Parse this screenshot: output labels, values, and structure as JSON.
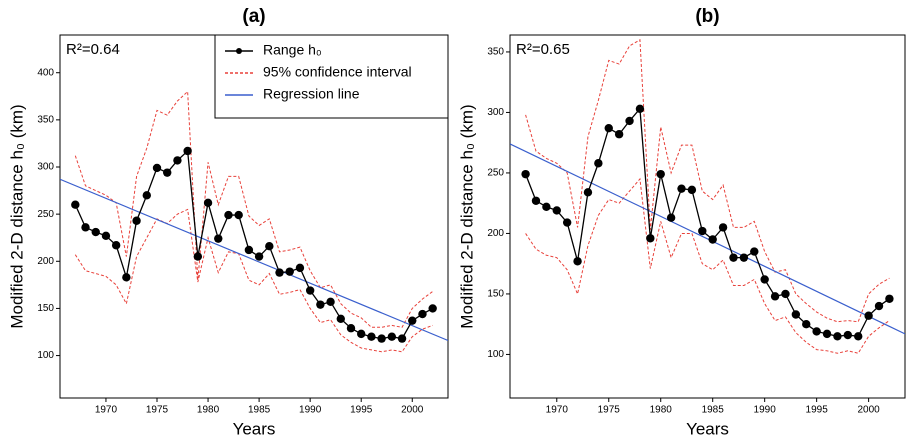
{
  "chart_data": [
    {
      "type": "line",
      "title": "(a)",
      "xlabel": "Years",
      "ylabel": "Modified 2-D distance h₀ (km)",
      "annotation": "R²=0.64",
      "legend": "top-right",
      "x": [
        1967,
        1968,
        1969,
        1970,
        1971,
        1972,
        1973,
        1974,
        1975,
        1976,
        1977,
        1978,
        1979,
        1980,
        1981,
        1982,
        1983,
        1984,
        1985,
        1986,
        1987,
        1988,
        1989,
        1990,
        1991,
        1992,
        1993,
        1994,
        1995,
        1996,
        1997,
        1998,
        1999,
        2000,
        2001,
        2002
      ],
      "series": [
        {
          "name": "Range h₀",
          "color": "#000000",
          "style": "line-points",
          "values": [
            260,
            236,
            231,
            227,
            217,
            183,
            243,
            270,
            299,
            294,
            307,
            317,
            205,
            262,
            224,
            249,
            249,
            212,
            205,
            216,
            188,
            189,
            193,
            169,
            154,
            157,
            139,
            129,
            123,
            120,
            118,
            120,
            118,
            137,
            144,
            150
          ]
        },
        {
          "name": "95% confidence interval",
          "color": "#e8413a",
          "style": "dashed-band",
          "upper": [
            312,
            280,
            275,
            270,
            262,
            205,
            290,
            320,
            360,
            355,
            370,
            380,
            180,
            305,
            260,
            290,
            290,
            248,
            238,
            245,
            210,
            212,
            215,
            190,
            172,
            175,
            155,
            145,
            140,
            130,
            130,
            132,
            130,
            150,
            160,
            168
          ],
          "lower": [
            207,
            190,
            187,
            184,
            175,
            155,
            205,
            225,
            245,
            240,
            250,
            255,
            178,
            225,
            188,
            210,
            208,
            180,
            175,
            187,
            165,
            167,
            170,
            150,
            135,
            138,
            122,
            114,
            108,
            106,
            104,
            106,
            104,
            120,
            128,
            132
          ]
        },
        {
          "name": "Regression line",
          "color": "#3a5fcd",
          "style": "line",
          "x": [
            1965.5,
            2003.5
          ],
          "values": [
            287,
            116
          ]
        }
      ],
      "xlim": [
        1965.5,
        2003.5
      ],
      "xticks": [
        1970,
        1975,
        1980,
        1985,
        1990,
        1995,
        2000
      ],
      "ylim": [
        55,
        440
      ],
      "yticks": [
        100,
        150,
        200,
        250,
        300,
        350,
        400
      ]
    },
    {
      "type": "line",
      "title": "(b)",
      "xlabel": "Years",
      "ylabel": "Modified 2-D distance h₀ (km)",
      "annotation": "R²=0.65",
      "x": [
        1967,
        1968,
        1969,
        1970,
        1971,
        1972,
        1973,
        1974,
        1975,
        1976,
        1977,
        1978,
        1979,
        1980,
        1981,
        1982,
        1983,
        1984,
        1985,
        1986,
        1987,
        1988,
        1989,
        1990,
        1991,
        1992,
        1993,
        1994,
        1995,
        1996,
        1997,
        1998,
        1999,
        2000,
        2001,
        2002
      ],
      "series": [
        {
          "color": "#000000",
          "style": "line-points",
          "values": [
            249,
            227,
            222,
            219,
            209,
            177,
            234,
            258,
            287,
            282,
            293,
            303,
            196,
            249,
            213,
            237,
            236,
            202,
            195,
            205,
            180,
            180,
            185,
            162,
            148,
            150,
            133,
            125,
            119,
            117,
            115,
            116,
            115,
            132,
            140,
            146
          ]
        },
        {
          "color": "#e8413a",
          "style": "dashed-band",
          "upper": [
            298,
            268,
            262,
            258,
            250,
            205,
            280,
            310,
            343,
            340,
            355,
            360,
            203,
            288,
            250,
            273,
            273,
            235,
            228,
            240,
            205,
            205,
            210,
            185,
            168,
            170,
            150,
            142,
            135,
            130,
            127,
            128,
            127,
            150,
            158,
            163
          ],
          "lower": [
            200,
            187,
            182,
            180,
            170,
            150,
            190,
            215,
            228,
            225,
            235,
            245,
            171,
            210,
            180,
            200,
            200,
            175,
            170,
            178,
            157,
            157,
            162,
            142,
            128,
            131,
            118,
            110,
            104,
            103,
            101,
            103,
            101,
            115,
            122,
            128
          ]
        },
        {
          "color": "#3a5fcd",
          "style": "line",
          "x": [
            1965.5,
            2003.5
          ],
          "values": [
            274,
            117
          ]
        }
      ],
      "xlim": [
        1965.5,
        2003.5
      ],
      "xticks": [
        1970,
        1975,
        1980,
        1985,
        1990,
        1995,
        2000
      ],
      "ylim": [
        64,
        364
      ],
      "yticks": [
        100,
        150,
        200,
        250,
        300,
        350
      ]
    }
  ]
}
